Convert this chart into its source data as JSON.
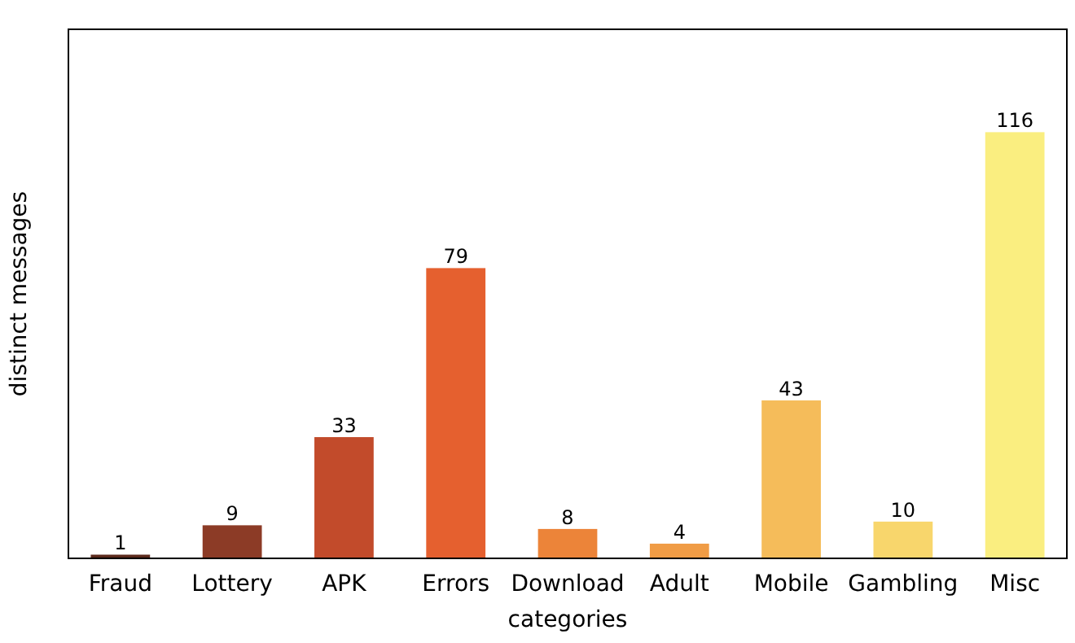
{
  "chart_data": {
    "type": "bar",
    "xlabel": "categories",
    "ylabel": "distinct messages",
    "categories": [
      "Fraud",
      "Lottery",
      "APK",
      "Errors",
      "Download",
      "Adult",
      "Mobile",
      "Gambling",
      "Misc"
    ],
    "values": [
      1,
      9,
      33,
      79,
      8,
      4,
      43,
      10,
      116
    ],
    "colors": [
      "#5c2a1c",
      "#8c3b26",
      "#c24b2b",
      "#e5602f",
      "#ec8439",
      "#f09c45",
      "#f5bc5a",
      "#f8d66c",
      "#faee80"
    ],
    "ylim": [
      0,
      144
    ],
    "data_labels": true,
    "tick_labels": "x"
  }
}
